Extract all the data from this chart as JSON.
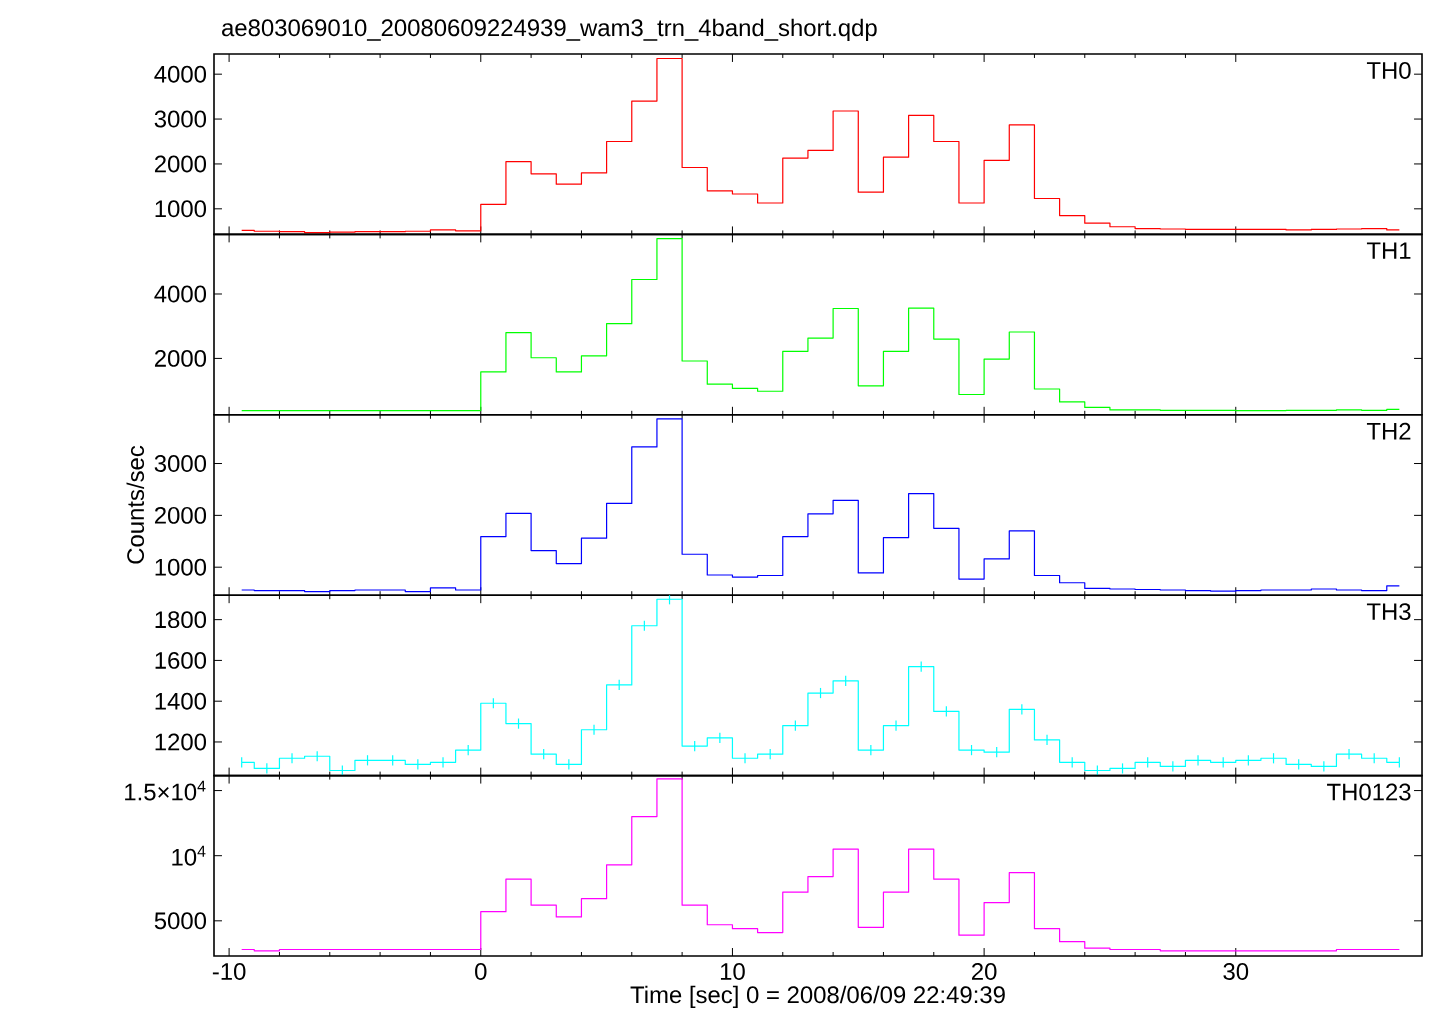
{
  "chart_data": [
    {
      "type": "step",
      "title": "ae803069010_20080609224939_wam3_trn_4band_short.qdp",
      "x": [
        -9.5,
        -8.5,
        -7.5,
        -6.5,
        -5.5,
        -4.5,
        -3.5,
        -2.5,
        -1.5,
        -0.5,
        0.5,
        1.5,
        2.5,
        3.5,
        4.5,
        5.5,
        6.5,
        7.5,
        8.5,
        9.5,
        10.5,
        11.5,
        12.5,
        13.5,
        14.5,
        15.5,
        16.5,
        17.5,
        18.5,
        19.5,
        20.5,
        21.5,
        22.5,
        23.5,
        24.5,
        25.5,
        26.5,
        27.5,
        28.5,
        29.5,
        30.5,
        31.5,
        32.5,
        33.5,
        34.5,
        35.5,
        36.5
      ],
      "xlim": [
        -10.6,
        37.4
      ],
      "xticks": [
        -10,
        0,
        10,
        20,
        30
      ],
      "ylim": [
        430,
        4450
      ],
      "yticks": [
        1000,
        2000,
        3000,
        4000
      ],
      "tick_labels": "y",
      "series": [
        {
          "name": "TH0",
          "color": "#ff0000",
          "values": [
            520,
            500,
            490,
            470,
            480,
            490,
            490,
            500,
            530,
            510,
            1100,
            2050,
            1780,
            1550,
            1800,
            2500,
            3400,
            4350,
            1920,
            1400,
            1330,
            1130,
            2130,
            2300,
            3180,
            1370,
            2150,
            3080,
            2500,
            1130,
            2080,
            2870,
            1230,
            850,
            680,
            600,
            560,
            550,
            540,
            540,
            540,
            540,
            530,
            540,
            550,
            560,
            530
          ]
        }
      ]
    },
    {
      "type": "step",
      "x": [
        -9.5,
        -8.5,
        -7.5,
        -6.5,
        -5.5,
        -4.5,
        -3.5,
        -2.5,
        -1.5,
        -0.5,
        0.5,
        1.5,
        2.5,
        3.5,
        4.5,
        5.5,
        6.5,
        7.5,
        8.5,
        9.5,
        10.5,
        11.5,
        12.5,
        13.5,
        14.5,
        15.5,
        16.5,
        17.5,
        18.5,
        19.5,
        20.5,
        21.5,
        22.5,
        23.5,
        24.5,
        25.5,
        26.5,
        27.5,
        28.5,
        29.5,
        30.5,
        31.5,
        32.5,
        33.5,
        34.5,
        35.5,
        36.5
      ],
      "xlim": [
        -10.6,
        37.4
      ],
      "xticks": [
        -10,
        0,
        10,
        20,
        30
      ],
      "ylim": [
        250,
        5850
      ],
      "yticks": [
        2000,
        4000
      ],
      "tick_labels": "y",
      "series": [
        {
          "name": "TH1",
          "color": "#00ff00",
          "values": [
            380,
            380,
            380,
            380,
            380,
            380,
            380,
            380,
            380,
            380,
            1580,
            2800,
            2020,
            1580,
            2080,
            3080,
            4450,
            5720,
            1920,
            1200,
            1070,
            980,
            2220,
            2630,
            3550,
            1150,
            2220,
            3560,
            2600,
            880,
            1980,
            2820,
            1050,
            650,
            480,
            400,
            400,
            390,
            390,
            390,
            380,
            380,
            390,
            390,
            400,
            390,
            420
          ]
        }
      ]
    },
    {
      "type": "step",
      "ylabel": "Counts/sec",
      "x": [
        -9.5,
        -8.5,
        -7.5,
        -6.5,
        -5.5,
        -4.5,
        -3.5,
        -2.5,
        -1.5,
        -0.5,
        0.5,
        1.5,
        2.5,
        3.5,
        4.5,
        5.5,
        6.5,
        7.5,
        8.5,
        9.5,
        10.5,
        11.5,
        12.5,
        13.5,
        14.5,
        15.5,
        16.5,
        17.5,
        18.5,
        19.5,
        20.5,
        21.5,
        22.5,
        23.5,
        24.5,
        25.5,
        26.5,
        27.5,
        28.5,
        29.5,
        30.5,
        31.5,
        32.5,
        33.5,
        34.5,
        35.5,
        36.5
      ],
      "xlim": [
        -10.6,
        37.4
      ],
      "xticks": [
        -10,
        0,
        10,
        20,
        30
      ],
      "ylim": [
        460,
        3940
      ],
      "yticks": [
        1000,
        2000,
        3000
      ],
      "tick_labels": "y",
      "series": [
        {
          "name": "TH2",
          "color": "#0000ff",
          "values": [
            560,
            550,
            550,
            530,
            550,
            560,
            560,
            530,
            600,
            560,
            1590,
            2040,
            1320,
            1070,
            1560,
            2230,
            3320,
            3860,
            1250,
            850,
            810,
            840,
            1590,
            2030,
            2290,
            890,
            1570,
            2420,
            1750,
            770,
            1160,
            1700,
            840,
            700,
            590,
            580,
            570,
            560,
            550,
            540,
            550,
            560,
            560,
            580,
            560,
            550,
            640
          ]
        }
      ]
    },
    {
      "type": "step",
      "x": [
        -9.5,
        -8.5,
        -7.5,
        -6.5,
        -5.5,
        -4.5,
        -3.5,
        -2.5,
        -1.5,
        -0.5,
        0.5,
        1.5,
        2.5,
        3.5,
        4.5,
        5.5,
        6.5,
        7.5,
        8.5,
        9.5,
        10.5,
        11.5,
        12.5,
        13.5,
        14.5,
        15.5,
        16.5,
        17.5,
        18.5,
        19.5,
        20.5,
        21.5,
        22.5,
        23.5,
        24.5,
        25.5,
        26.5,
        27.5,
        28.5,
        29.5,
        30.5,
        31.5,
        32.5,
        33.5,
        34.5,
        35.5,
        36.5
      ],
      "xlim": [
        -10.6,
        37.4
      ],
      "xticks": [
        -10,
        0,
        10,
        20,
        30
      ],
      "ylim": [
        1035,
        1920
      ],
      "yticks": [
        1200,
        1400,
        1600,
        1800
      ],
      "tick_labels": "y",
      "series": [
        {
          "name": "TH3",
          "color": "#00ffff",
          "values": [
            1100,
            1070,
            1120,
            1130,
            1060,
            1110,
            1110,
            1090,
            1100,
            1160,
            1390,
            1290,
            1140,
            1090,
            1260,
            1480,
            1770,
            1900,
            1180,
            1220,
            1120,
            1140,
            1280,
            1440,
            1500,
            1160,
            1280,
            1570,
            1350,
            1160,
            1150,
            1360,
            1210,
            1100,
            1060,
            1070,
            1100,
            1080,
            1110,
            1100,
            1110,
            1120,
            1090,
            1080,
            1140,
            1120,
            1100
          ],
          "errors": [
            25,
            25,
            25,
            25,
            25,
            25,
            25,
            25,
            25,
            25,
            25,
            25,
            25,
            25,
            25,
            25,
            25,
            25,
            25,
            25,
            25,
            25,
            25,
            25,
            25,
            25,
            25,
            25,
            25,
            25,
            25,
            25,
            25,
            25,
            25,
            25,
            25,
            25,
            25,
            25,
            25,
            25,
            25,
            25,
            25,
            25,
            25
          ]
        }
      ]
    },
    {
      "type": "step",
      "xlabel": "Time [sec] 0 = 2008/06/09 22:49:39",
      "x": [
        -9.5,
        -8.5,
        -7.5,
        -6.5,
        -5.5,
        -4.5,
        -3.5,
        -2.5,
        -1.5,
        -0.5,
        0.5,
        1.5,
        2.5,
        3.5,
        4.5,
        5.5,
        6.5,
        7.5,
        8.5,
        9.5,
        10.5,
        11.5,
        12.5,
        13.5,
        14.5,
        15.5,
        16.5,
        17.5,
        18.5,
        19.5,
        20.5,
        21.5,
        22.5,
        23.5,
        24.5,
        25.5,
        26.5,
        27.5,
        28.5,
        29.5,
        30.5,
        31.5,
        32.5,
        33.5,
        34.5,
        35.5,
        36.5
      ],
      "xlim": [
        -10.6,
        37.4
      ],
      "xticks": [
        -10,
        0,
        10,
        20,
        30
      ],
      "ylim": [
        2300,
        16150
      ],
      "yticks": [
        5000,
        {
          "value": 10000,
          "label": "10$^{4}$"
        },
        {
          "value": 15000,
          "label": "1.5×10$^{4}$"
        }
      ],
      "series": [
        {
          "name": "TH0123",
          "color": "#ff00ff",
          "values": [
            2800,
            2700,
            2800,
            2800,
            2800,
            2800,
            2800,
            2800,
            2800,
            2800,
            5700,
            8200,
            6200,
            5300,
            6700,
            9300,
            13000,
            15900,
            6200,
            4700,
            4400,
            4100,
            7200,
            8400,
            10500,
            4500,
            7200,
            10500,
            8200,
            3900,
            6400,
            8700,
            4400,
            3400,
            2900,
            2800,
            2800,
            2700,
            2700,
            2700,
            2700,
            2700,
            2700,
            2700,
            2800,
            2800,
            2800
          ]
        }
      ]
    }
  ]
}
